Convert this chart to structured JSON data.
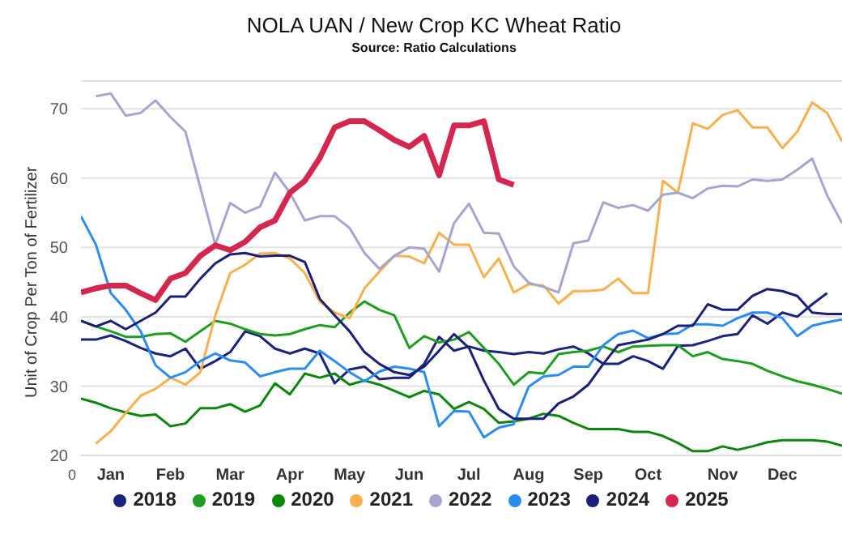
{
  "chart_data": {
    "type": "line",
    "title": "NOLA UAN / New Crop KC Wheat Ratio",
    "subtitle": "Source: Ratio Calculations",
    "ylabel": "Unit of Crop Per Ton of Fertilizer",
    "annotations": [
      "0"
    ],
    "categories": [
      null,
      null,
      "Jan",
      null,
      null,
      null,
      "Feb",
      null,
      null,
      null,
      "Mar",
      null,
      null,
      null,
      "Apr",
      null,
      null,
      null,
      "May",
      null,
      null,
      null,
      "Jun",
      null,
      null,
      null,
      "Jul",
      null,
      null,
      null,
      "Aug",
      null,
      null,
      null,
      "Sep",
      null,
      null,
      null,
      "Oct",
      null,
      null,
      null,
      null,
      "Nov",
      null,
      null,
      null,
      "Dec",
      null,
      null,
      null,
      null
    ],
    "ylim": [
      20,
      74
    ],
    "yticks": [
      20,
      30,
      40,
      50,
      60,
      70
    ],
    "grid": "y",
    "legend": "bottom",
    "marker": "none",
    "line_style": "solid",
    "series": [
      {
        "name": "2018",
        "color": "#1a237e",
        "values": [
          36.7,
          36.7,
          37.3,
          36.5,
          35.5,
          34.7,
          34.3,
          35.4,
          32.5,
          33.6,
          34.9,
          37.9,
          37.2,
          35.4,
          34.7,
          35.4,
          34.7,
          30.4,
          32.4,
          32.8,
          31,
          31.2,
          31.2,
          33.2,
          37.1,
          35.1,
          35.7,
          35.1,
          34.9,
          34.6,
          34.9,
          34.7,
          35.3,
          35.7,
          34.7,
          33.2,
          33.2,
          34.3,
          33.6,
          32.5,
          35.8,
          35.9,
          36.5,
          37.2,
          37.5,
          40.2,
          39,
          40.6,
          40,
          41.8,
          43.4,
          null
        ]
      },
      {
        "name": "2019",
        "color": "#1e9e1e",
        "values": [
          39.4,
          38.6,
          37.9,
          37.1,
          37.1,
          37.5,
          37.6,
          36.4,
          37.9,
          39.4,
          39,
          38.2,
          37.5,
          37.3,
          37.5,
          38.2,
          38.8,
          38.5,
          40.6,
          42.2,
          41,
          40.2,
          35.5,
          37.2,
          36.3,
          36.7,
          37.8,
          35.5,
          33.2,
          30.2,
          32,
          31.8,
          34.6,
          34.9,
          35.1,
          35.7,
          34.9,
          35.7,
          35.8,
          35.9,
          35.9,
          34.3,
          34.9,
          33.9,
          33.6,
          33.2,
          32.2,
          31.4,
          30.7,
          30.2,
          29.6,
          28.9
        ]
      },
      {
        "name": "2020",
        "color": "#0c870c",
        "values": [
          28.2,
          27.6,
          26.8,
          26.2,
          25.7,
          25.9,
          24.2,
          24.6,
          26.8,
          26.8,
          27.4,
          26.3,
          27.2,
          30.4,
          28.8,
          31.8,
          31.2,
          31.8,
          30.2,
          30.8,
          30.2,
          29.3,
          28.4,
          29.3,
          28.8,
          26.7,
          27.7,
          26.7,
          24.7,
          24.9,
          25.3,
          26,
          25.7,
          24.7,
          23.8,
          23.8,
          23.8,
          23.4,
          23.4,
          22.8,
          21.8,
          20.6,
          20.6,
          21.3,
          20.8,
          21.3,
          21.9,
          22.2,
          22.2,
          22.2,
          22,
          21.4
        ]
      },
      {
        "name": "2021",
        "color": "#f9b04c",
        "values": [
          null,
          21.7,
          23.5,
          26.1,
          28.6,
          29.6,
          31.2,
          30.2,
          32,
          40.2,
          46.3,
          47.5,
          49.1,
          49.2,
          48.4,
          46.3,
          42.2,
          40.6,
          39.8,
          44.1,
          46.5,
          48.8,
          48.7,
          47.7,
          52.1,
          50.4,
          50.4,
          45.7,
          48.4,
          43.5,
          44.7,
          44.5,
          41.9,
          43.7,
          43.7,
          43.9,
          45.5,
          43.4,
          43.4,
          59.6,
          57.9,
          67.9,
          67.1,
          69.1,
          69.8,
          67.3,
          67.3,
          64.3,
          66.7,
          70.9,
          69.4,
          65.3
        ]
      },
      {
        "name": "2022",
        "color": "#a4a6d0",
        "values": [
          null,
          71.8,
          72.2,
          69,
          69.4,
          71.2,
          68.8,
          66.7,
          58.6,
          50.4,
          56.4,
          55,
          55.9,
          60.8,
          57.9,
          53.9,
          54.5,
          54.5,
          52.8,
          49.2,
          46.9,
          48.8,
          50,
          49.8,
          46.5,
          53.5,
          56.3,
          52.1,
          52,
          47.3,
          44.9,
          44.3,
          43.5,
          50.6,
          51,
          56.5,
          55.7,
          56.1,
          55.3,
          57.6,
          57.9,
          57.1,
          58.5,
          58.9,
          58.8,
          59.8,
          59.6,
          59.8,
          61.2,
          62.8,
          57.5,
          53.5
        ]
      },
      {
        "name": "2023",
        "color": "#2a8cf0",
        "values": [
          54.5,
          50.4,
          43.4,
          41,
          37.9,
          33,
          31.2,
          32,
          33.6,
          34.7,
          33.7,
          33.4,
          31.4,
          32,
          32.5,
          32.5,
          35.1,
          33.6,
          32,
          30.7,
          32.1,
          32.8,
          32.5,
          32,
          24.2,
          26.4,
          26.3,
          22.6,
          24,
          24.5,
          29.9,
          31.4,
          31.6,
          32.8,
          32.8,
          35.9,
          37.5,
          38,
          36.9,
          37.5,
          37.6,
          38.9,
          38.9,
          38.7,
          39.8,
          40.6,
          40.6,
          39.8,
          37.2,
          38.7,
          39.2,
          39.6
        ]
      },
      {
        "name": "2024",
        "color": "#1b1f78",
        "values": [
          39.4,
          38.6,
          39.4,
          38.2,
          39.4,
          40.6,
          42.9,
          42.9,
          45.5,
          47.7,
          49,
          49.2,
          48.7,
          48.8,
          48.8,
          47.9,
          42.6,
          40.2,
          37.9,
          34.9,
          33.2,
          32,
          31.6,
          32.8,
          35.1,
          37.5,
          35.5,
          30.8,
          26.7,
          25.3,
          25.3,
          25.3,
          27.5,
          28.5,
          30.2,
          33.2,
          35.9,
          36.3,
          36.7,
          37.5,
          38.7,
          38.7,
          41.8,
          41,
          41,
          43,
          44,
          43.7,
          43,
          40.6,
          40.4,
          40.4
        ]
      },
      {
        "name": "2025",
        "color": "#d4264f",
        "values": [
          43.5,
          44.1,
          44.5,
          44.5,
          43.4,
          42.4,
          45.5,
          46.3,
          48.8,
          50.3,
          49.6,
          50.8,
          52.9,
          53.9,
          57.9,
          59.6,
          62.9,
          67.3,
          68.2,
          68.2,
          66.9,
          65.5,
          64.5,
          66.1,
          60.4,
          67.6,
          67.6,
          68.2,
          59.8,
          59,
          null,
          null,
          null,
          null,
          null,
          null,
          null,
          null,
          null,
          null,
          null,
          null,
          null,
          null,
          null,
          null,
          null,
          null,
          null,
          null,
          null,
          null
        ]
      }
    ]
  }
}
